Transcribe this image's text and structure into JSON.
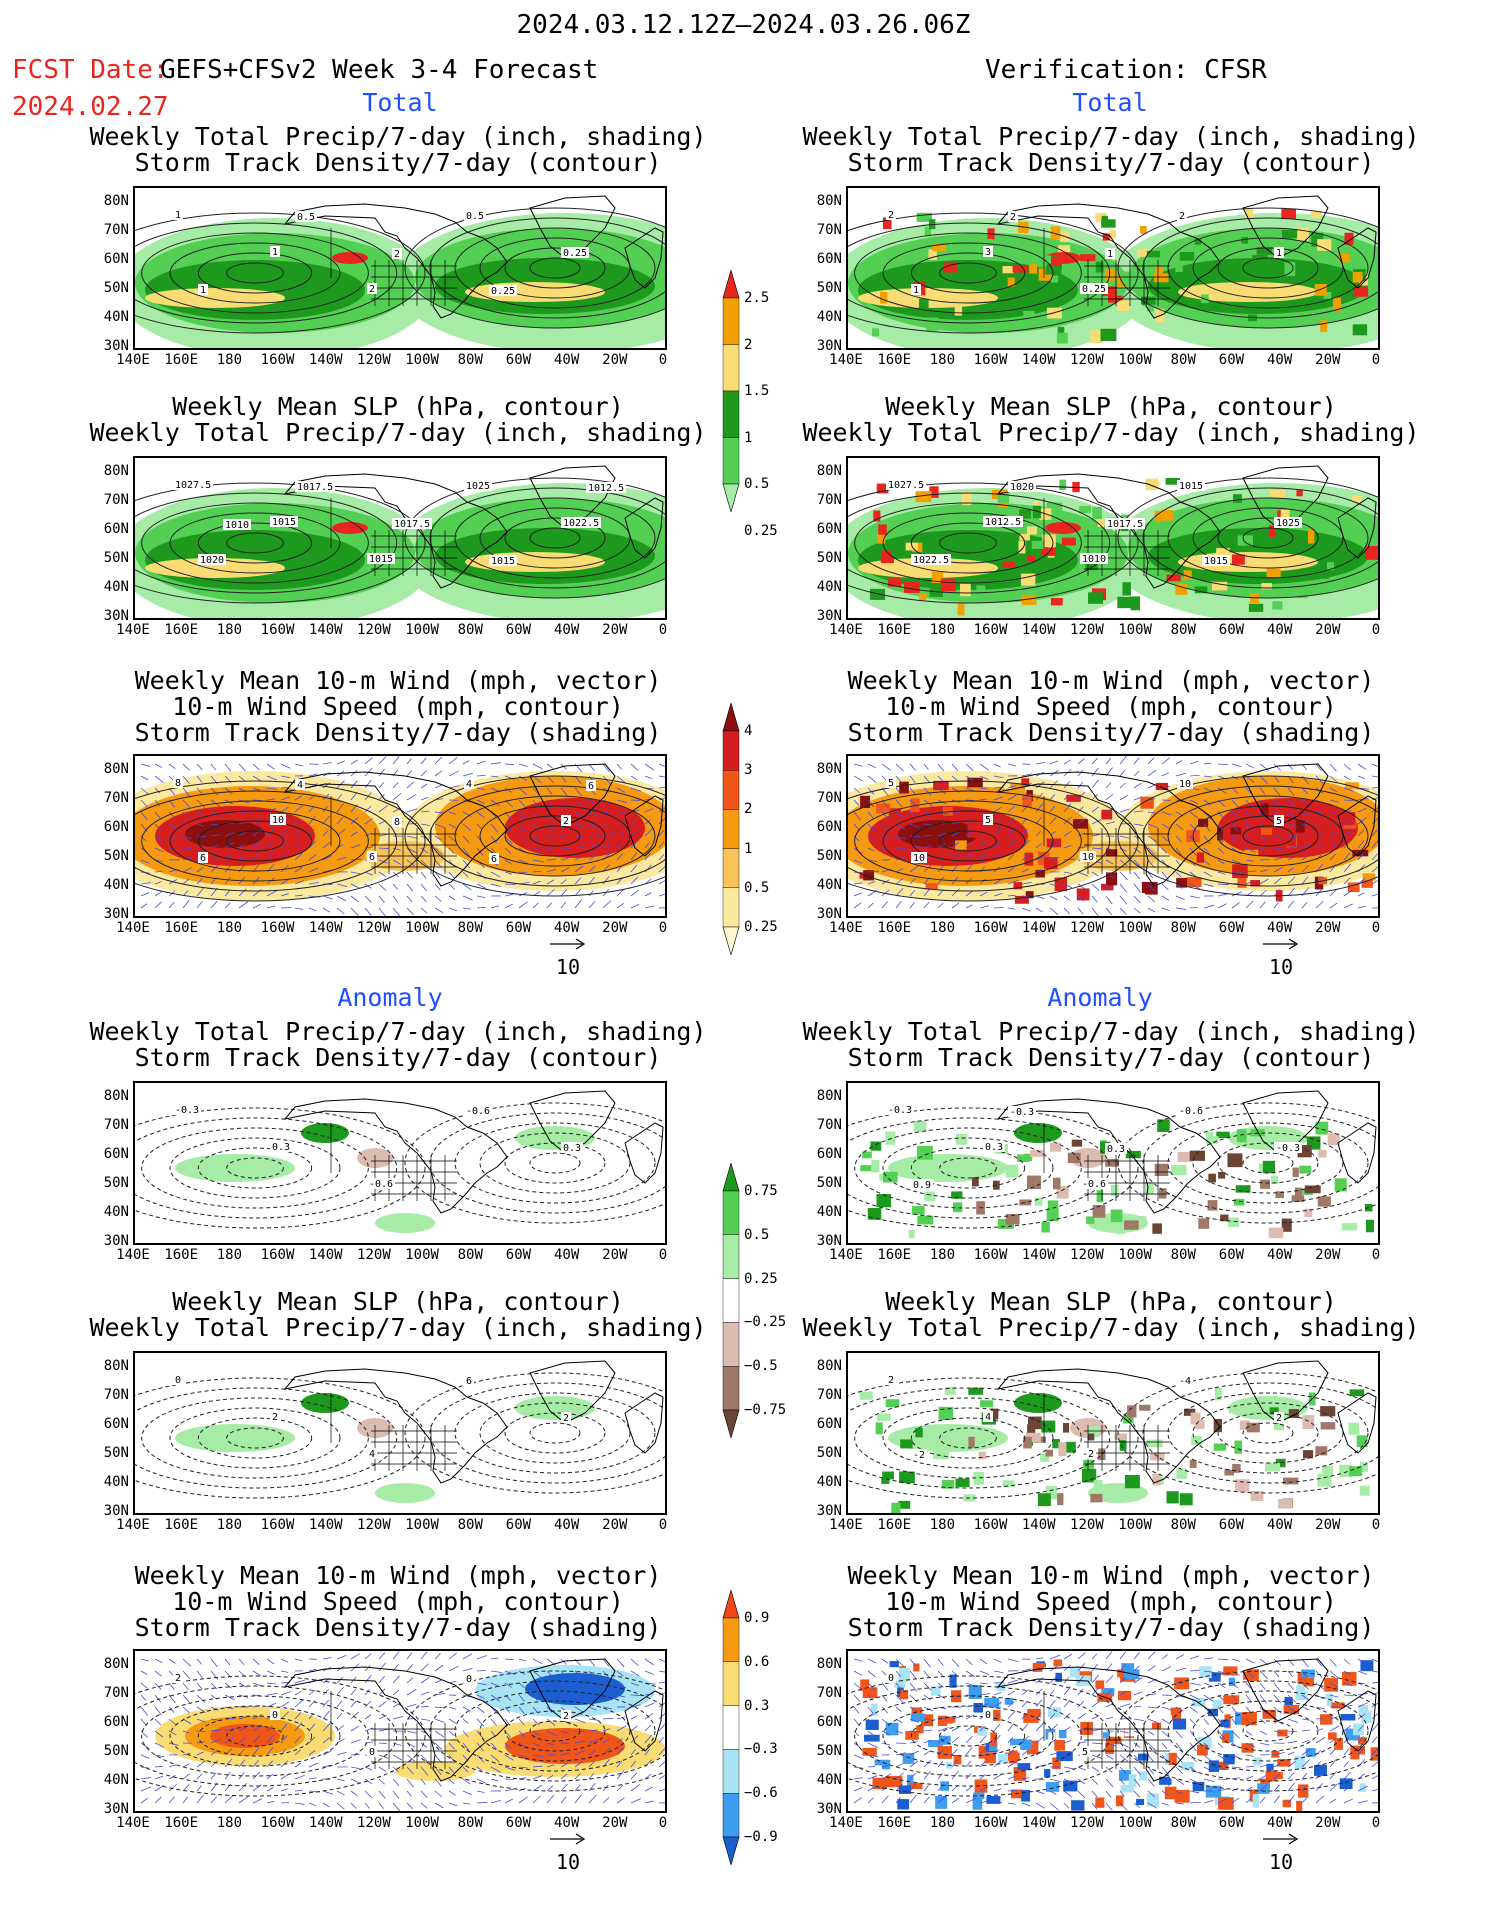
{
  "header": {
    "period": "2024.03.12.12Z–2024.03.26.06Z",
    "fcst_label": "FCST Date:",
    "fcst_source": "GEFS+CFSv2 Week 3-4 Forecast",
    "fcst_date": "2024.02.27",
    "verification": "Verification: CFSR"
  },
  "sections": {
    "total": "Total",
    "anomaly": "Anomaly"
  },
  "titles": {
    "precip_storm": [
      "Weekly Total Precip/7-day (inch, shading)",
      "Storm Track Density/7-day (contour)"
    ],
    "slp_precip": [
      "Weekly Mean SLP (hPa, contour)",
      "Weekly Total Precip/7-day (inch, shading)"
    ],
    "wind_storm": [
      "Weekly Mean 10-m Wind (mph, vector)",
      "10-m Wind Speed (mph, contour)",
      "Storm Track Density/7-day (shading)"
    ]
  },
  "axes": {
    "lat_labels": [
      "80N",
      "70N",
      "60N",
      "50N",
      "40N",
      "30N"
    ],
    "lon_labels": [
      "140E",
      "160E",
      "180",
      "160W",
      "140W",
      "120W",
      "100W",
      "80W",
      "60W",
      "40W",
      "20W",
      "0"
    ]
  },
  "vector_reference": "10",
  "colorbars": {
    "precip_total": {
      "labels": [
        "2.5",
        "2",
        "1.5",
        "1",
        "0.5",
        "0.25"
      ],
      "colors": [
        "#e8261f",
        "#f2a000",
        "#f9dc73",
        "#1d9a1d",
        "#53cf53",
        "#a6eca6"
      ]
    },
    "storm_total": {
      "labels": [
        "4",
        "3",
        "2",
        "1",
        "0.5",
        "0.25"
      ],
      "colors": [
        "#8c0f10",
        "#d61e1e",
        "#f0561a",
        "#f69a12",
        "#f8c45a",
        "#fbe9a0",
        "#fcf7d0"
      ]
    },
    "precip_anom": {
      "labels": [
        "0.75",
        "0.5",
        "0.25",
        "−0.25",
        "−0.5",
        "−0.75"
      ],
      "colors": [
        "#1d9a1d",
        "#53cf53",
        "#a6eca6",
        "#ffffff",
        "#dcbcb0",
        "#a07868",
        "#6a4434"
      ]
    },
    "storm_anom": {
      "labels": [
        "0.9",
        "0.6",
        "0.3",
        "−0.3",
        "−0.6",
        "−0.9"
      ],
      "colors": [
        "#f0461a",
        "#f69a12",
        "#f9dc73",
        "#ffffff",
        "#a8e4f4",
        "#3d9df0",
        "#1a5fd0"
      ]
    }
  },
  "panels": {
    "fcst_total_precip": {
      "contour_labels": [
        "1",
        "1",
        "2",
        "0.5",
        "0.25",
        "1",
        "0.5",
        "2",
        "0.25"
      ]
    },
    "fcst_total_slp": {
      "contour_labels": [
        "1027.5",
        "1015",
        "1015",
        "1025",
        "1022.5",
        "1020",
        "1017.5",
        "1017.5",
        "1015",
        "1012.5",
        "1010"
      ]
    },
    "fcst_total_wind": {
      "contour_labels": [
        "8",
        "10",
        "6",
        "4",
        "2",
        "6",
        "4",
        "8",
        "6",
        "6"
      ]
    },
    "verif_total_precip": {
      "contour_labels": [
        "2",
        "3",
        "0.25",
        "2",
        "1",
        "1",
        "2",
        "1"
      ]
    },
    "verif_total_slp": {
      "contour_labels": [
        "1027.5",
        "1012.5",
        "1010",
        "1015",
        "1025",
        "1022.5",
        "1020",
        "1017.5",
        "1015"
      ]
    },
    "verif_total_wind": {
      "contour_labels": [
        "5",
        "5",
        "10",
        "10",
        "5",
        "10"
      ]
    },
    "fcst_anom_precip": {
      "contour_labels": [
        "-0.3",
        "0.3",
        "-0.6",
        "-0.6",
        "0.3"
      ]
    },
    "fcst_anom_slp": {
      "contour_labels": [
        "0",
        "2",
        "4",
        "6",
        "2"
      ]
    },
    "fcst_anom_wind": {
      "contour_labels": [
        "2",
        "0",
        "0",
        "0",
        "2"
      ]
    },
    "verif_anom_precip": {
      "contour_labels": [
        "-0.3",
        "0.3",
        "-0.6",
        "-0.6",
        "-0.3",
        "0.9",
        "-0.3",
        "0.3"
      ]
    },
    "verif_anom_slp": {
      "contour_labels": [
        "2",
        "4",
        "-2",
        "-4",
        "2",
        "-2"
      ]
    },
    "verif_anom_wind": {
      "contour_labels": [
        "0",
        "0",
        "5"
      ]
    }
  }
}
